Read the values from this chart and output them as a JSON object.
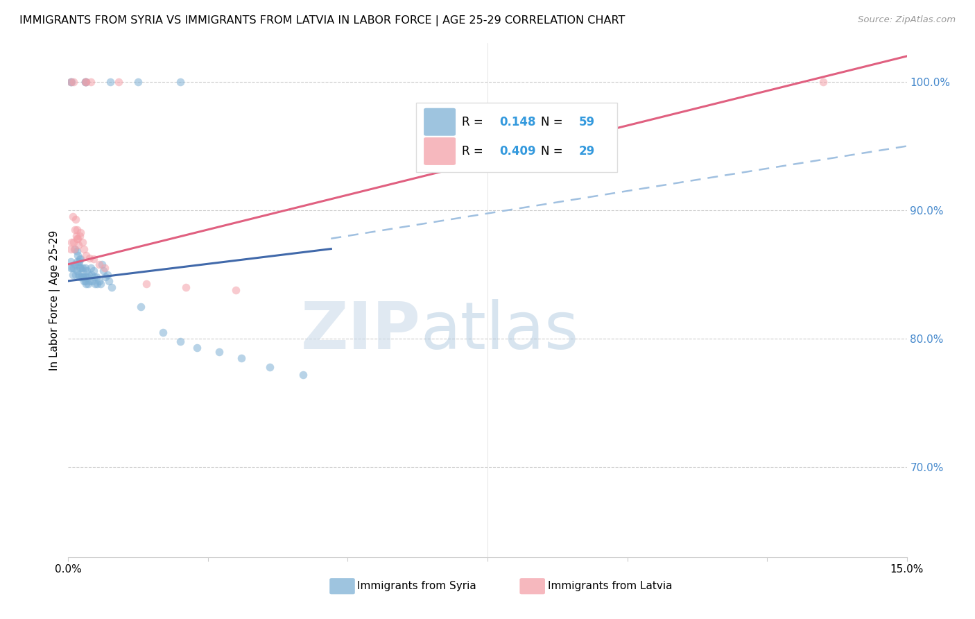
{
  "title": "IMMIGRANTS FROM SYRIA VS IMMIGRANTS FROM LATVIA IN LABOR FORCE | AGE 25-29 CORRELATION CHART",
  "source": "Source: ZipAtlas.com",
  "ylabel": "In Labor Force | Age 25-29",
  "y_tick_labels": [
    "100.0%",
    "90.0%",
    "80.0%",
    "70.0%"
  ],
  "y_tick_values": [
    1.0,
    0.9,
    0.8,
    0.7
  ],
  "xlim": [
    0.0,
    0.15
  ],
  "ylim": [
    0.63,
    1.03
  ],
  "legend_blue_R": "0.148",
  "legend_blue_N": "59",
  "legend_pink_R": "0.409",
  "legend_pink_N": "29",
  "blue_color": "#7EB0D5",
  "pink_color": "#F4A0A8",
  "blue_line_color": "#4169AA",
  "pink_line_color": "#E06080",
  "dashed_line_color": "#A0C0E0",
  "scatter_alpha": 0.55,
  "marker_size": 70,
  "syria_x": [
    0.0005,
    0.0005,
    0.0007,
    0.0008,
    0.001,
    0.0012,
    0.0012,
    0.0013,
    0.0015,
    0.0015,
    0.0015,
    0.0017,
    0.0018,
    0.0018,
    0.0019,
    0.002,
    0.002,
    0.0021,
    0.0022,
    0.0022,
    0.0023,
    0.0025,
    0.0025,
    0.0026,
    0.0027,
    0.0028,
    0.003,
    0.003,
    0.0031,
    0.0032,
    0.0033,
    0.0034,
    0.0035,
    0.0037,
    0.0038,
    0.004,
    0.0042,
    0.0043,
    0.0045,
    0.0047,
    0.0048,
    0.005,
    0.0052,
    0.0055,
    0.0058,
    0.006,
    0.0063,
    0.0067,
    0.007,
    0.0073,
    0.0078,
    0.013,
    0.017,
    0.02,
    0.023,
    0.027,
    0.031,
    0.036,
    0.042
  ],
  "syria_y": [
    0.86,
    0.855,
    0.855,
    0.85,
    0.855,
    0.87,
    0.858,
    0.85,
    0.868,
    0.86,
    0.853,
    0.865,
    0.858,
    0.85,
    0.86,
    0.862,
    0.855,
    0.848,
    0.862,
    0.855,
    0.848,
    0.855,
    0.848,
    0.853,
    0.848,
    0.845,
    0.855,
    0.848,
    0.845,
    0.843,
    0.853,
    0.848,
    0.843,
    0.85,
    0.845,
    0.855,
    0.85,
    0.845,
    0.853,
    0.848,
    0.843,
    0.848,
    0.843,
    0.845,
    0.843,
    0.858,
    0.853,
    0.848,
    0.85,
    0.845,
    0.84,
    0.825,
    0.805,
    0.798,
    0.793,
    0.79,
    0.785,
    0.778,
    0.772
  ],
  "latvia_x": [
    0.0005,
    0.0006,
    0.0008,
    0.001,
    0.0011,
    0.0012,
    0.0013,
    0.0014,
    0.0015,
    0.0016,
    0.0017,
    0.0018,
    0.002,
    0.0022,
    0.0025,
    0.0028,
    0.0032,
    0.0038,
    0.0045,
    0.0055,
    0.0065,
    0.014,
    0.021,
    0.03,
    0.135
  ],
  "latvia_y": [
    0.87,
    0.875,
    0.895,
    0.875,
    0.87,
    0.885,
    0.893,
    0.88,
    0.878,
    0.885,
    0.878,
    0.873,
    0.88,
    0.883,
    0.875,
    0.87,
    0.865,
    0.863,
    0.862,
    0.858,
    0.855,
    0.843,
    0.84,
    0.838,
    1.0
  ],
  "top_blue_x": [
    0.0005,
    0.0006,
    0.003,
    0.0031,
    0.0032,
    0.0075,
    0.0125,
    0.02
  ],
  "top_blue_y": [
    1.0,
    1.0,
    1.0,
    1.0,
    1.0,
    1.0,
    1.0,
    1.0
  ],
  "top_pink_x": [
    0.0005,
    0.001,
    0.003,
    0.0032,
    0.004,
    0.009
  ],
  "top_pink_y": [
    1.0,
    1.0,
    1.0,
    1.0,
    1.0,
    1.0
  ],
  "blue_line_x0": 0.0,
  "blue_line_x1": 0.047,
  "blue_line_y0": 0.845,
  "blue_line_y1": 0.87,
  "pink_line_x0": 0.0,
  "pink_line_x1": 0.15,
  "pink_line_y0": 0.858,
  "pink_line_y1": 1.02,
  "dash_line_x0": 0.047,
  "dash_line_x1": 0.15,
  "dash_line_y0": 0.878,
  "dash_line_y1": 0.95,
  "watermark_zip": "ZIP",
  "watermark_atlas": "atlas"
}
